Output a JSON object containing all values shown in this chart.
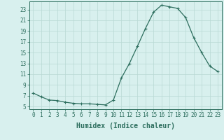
{
  "x": [
    0,
    1,
    2,
    3,
    4,
    5,
    6,
    7,
    8,
    9,
    10,
    11,
    12,
    13,
    14,
    15,
    16,
    17,
    18,
    19,
    20,
    21,
    22,
    23
  ],
  "y": [
    7.5,
    6.8,
    6.2,
    6.1,
    5.8,
    5.6,
    5.5,
    5.5,
    5.4,
    5.3,
    6.2,
    10.3,
    13.0,
    16.2,
    19.5,
    22.5,
    23.8,
    23.5,
    23.2,
    21.5,
    17.8,
    15.0,
    12.5,
    11.5
  ],
  "line_color": "#2d6e5e",
  "marker": "+",
  "marker_size": 3.5,
  "linewidth": 0.9,
  "bg_color": "#d8f0ee",
  "grid_color": "#b8d8d4",
  "xlabel": "Humidex (Indice chaleur)",
  "ylabel_ticks": [
    5,
    7,
    9,
    11,
    13,
    15,
    17,
    19,
    21,
    23
  ],
  "xtick_labels": [
    "0",
    "1",
    "2",
    "3",
    "4",
    "5",
    "6",
    "7",
    "8",
    "9",
    "10",
    "11",
    "12",
    "13",
    "14",
    "15",
    "16",
    "17",
    "18",
    "19",
    "20",
    "21",
    "22",
    "23"
  ],
  "xlim": [
    -0.5,
    23.5
  ],
  "ylim": [
    4.5,
    24.5
  ],
  "axis_color": "#2d6e5e",
  "tick_fontsize": 5.5,
  "xlabel_fontsize": 7.0
}
